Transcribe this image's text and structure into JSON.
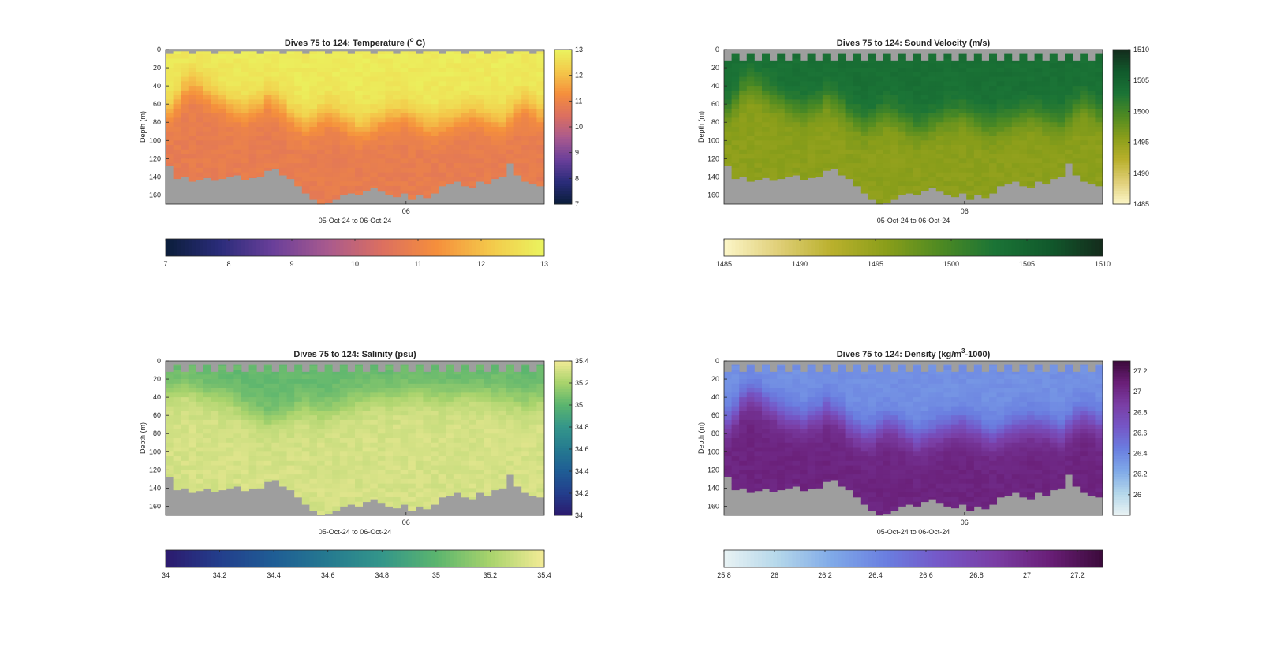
{
  "chart_data": [
    {
      "type": "heatmap",
      "title": "Dives 75 to 124: Temperature (",
      "title_sup": "o",
      "title_tail": " C)",
      "xlabel": "05-Oct-24 to 06-Oct-24",
      "ylabel": "Depth (m)",
      "x_tick_labels": [
        "06"
      ],
      "y_ticks": [
        0,
        20,
        40,
        60,
        80,
        100,
        120,
        140,
        160
      ],
      "ylim": [
        0,
        170
      ],
      "clim": [
        7,
        13
      ],
      "colorbar_ticks": [
        7,
        8,
        9,
        10,
        11,
        12,
        13
      ],
      "colorbar_ticks_h": [
        "7",
        "8",
        "9",
        "10",
        "11",
        "12",
        "13"
      ],
      "colormap": [
        "#0b1e3a",
        "#2a2c7a",
        "#6a3f9a",
        "#a95a8e",
        "#dc6f60",
        "#f58f3c",
        "#f4c84a",
        "#eaf45f"
      ],
      "nodata_color": "#9e9e9e",
      "grid": false,
      "dives": 50,
      "max_depth": [
        128,
        142,
        140,
        145,
        143,
        141,
        144,
        142,
        140,
        138,
        143,
        141,
        140,
        133,
        131,
        138,
        142,
        150,
        158,
        165,
        170,
        168,
        165,
        160,
        158,
        160,
        155,
        152,
        156,
        160,
        162,
        158,
        165,
        160,
        163,
        158,
        150,
        148,
        145,
        150,
        152,
        145,
        148,
        142,
        140,
        125,
        138,
        145,
        148,
        150
      ],
      "thermocline_depth": [
        65,
        55,
        40,
        35,
        38,
        45,
        50,
        55,
        60,
        62,
        65,
        60,
        58,
        50,
        55,
        60,
        70,
        75,
        80,
        78,
        72,
        68,
        70,
        75,
        80,
        85,
        82,
        78,
        75,
        72,
        70,
        68,
        72,
        75,
        80,
        82,
        78,
        75,
        72,
        70,
        68,
        70,
        72,
        75,
        78,
        70,
        62,
        58,
        62,
        68
      ],
      "surface_value": 12.8,
      "deep_value": 10.8
    },
    {
      "type": "heatmap",
      "title": "Dives 75 to 124: Sound Velocity (m/s)",
      "xlabel": "05-Oct-24 to 06-Oct-24",
      "ylabel": "Depth (m)",
      "x_tick_labels": [
        "06"
      ],
      "y_ticks": [
        0,
        20,
        40,
        60,
        80,
        100,
        120,
        140,
        160
      ],
      "ylim": [
        0,
        170
      ],
      "clim": [
        1485,
        1510
      ],
      "colorbar_ticks": [
        1485,
        1490,
        1495,
        1500,
        1505,
        1510
      ],
      "colorbar_ticks_h": [
        "1485",
        "1490",
        "1495",
        "1500",
        "1505",
        "1510"
      ],
      "colormap": [
        "#fcf6c8",
        "#e0cf78",
        "#b9b02c",
        "#8a9e1a",
        "#4e8a22",
        "#1b7436",
        "#115a2c",
        "#142b1c"
      ],
      "nodata_color": "#9e9e9e",
      "grid": false,
      "dives": 50,
      "max_depth": [
        128,
        142,
        140,
        145,
        143,
        141,
        144,
        142,
        140,
        138,
        143,
        141,
        140,
        133,
        131,
        138,
        142,
        150,
        158,
        165,
        170,
        168,
        165,
        160,
        158,
        160,
        155,
        152,
        156,
        160,
        162,
        158,
        165,
        160,
        163,
        158,
        150,
        148,
        145,
        150,
        152,
        145,
        148,
        142,
        140,
        125,
        138,
        145,
        148,
        150
      ],
      "thermocline_depth": [
        65,
        55,
        40,
        35,
        38,
        45,
        50,
        55,
        60,
        62,
        65,
        60,
        58,
        50,
        55,
        60,
        70,
        75,
        80,
        78,
        72,
        68,
        70,
        75,
        80,
        85,
        82,
        78,
        75,
        72,
        70,
        68,
        72,
        75,
        80,
        82,
        78,
        75,
        72,
        70,
        68,
        70,
        72,
        75,
        78,
        70,
        62,
        58,
        62,
        68
      ],
      "surface_value": 1503.5,
      "deep_value": 1495.5,
      "top_gap_depth": 12
    },
    {
      "type": "heatmap",
      "title": "Dives 75 to 124: Salinity (psu)",
      "xlabel": "05-Oct-24 to 06-Oct-24",
      "ylabel": "Depth (m)",
      "x_tick_labels": [
        "06"
      ],
      "y_ticks": [
        0,
        20,
        40,
        60,
        80,
        100,
        120,
        140,
        160
      ],
      "ylim": [
        0,
        170
      ],
      "clim": [
        34,
        35.4
      ],
      "colorbar_ticks": [
        34,
        34.2,
        34.4,
        34.6,
        34.8,
        35,
        35.2,
        35.4
      ],
      "colorbar_ticks_h": [
        "34",
        "34.2",
        "34.4",
        "34.6",
        "34.8",
        "35",
        "35.2",
        "35.4"
      ],
      "colormap": [
        "#2c1a6e",
        "#233e8c",
        "#1f5d95",
        "#257a90",
        "#34968a",
        "#5bb56e",
        "#a8d36c",
        "#f3eb97"
      ],
      "nodata_color": "#9e9e9e",
      "grid": false,
      "dives": 50,
      "max_depth": [
        128,
        142,
        140,
        145,
        143,
        141,
        144,
        142,
        140,
        138,
        143,
        141,
        140,
        133,
        131,
        138,
        142,
        150,
        158,
        165,
        170,
        168,
        165,
        160,
        158,
        160,
        155,
        152,
        156,
        160,
        162,
        158,
        165,
        160,
        163,
        158,
        150,
        148,
        145,
        150,
        152,
        145,
        148,
        142,
        140,
        125,
        138,
        145,
        148,
        150
      ],
      "thermocline_depth": [
        30,
        28,
        25,
        28,
        32,
        35,
        35,
        38,
        40,
        45,
        50,
        55,
        58,
        62,
        60,
        58,
        55,
        50,
        48,
        50,
        52,
        50,
        48,
        45,
        42,
        40,
        38,
        36,
        35,
        35,
        34,
        33,
        32,
        32,
        33,
        34,
        35,
        35,
        34,
        33,
        32,
        33,
        34,
        35,
        36,
        38,
        40,
        42,
        40,
        38
      ],
      "surface_value": 35.02,
      "deep_value": 35.32,
      "top_gap_depth": 12
    },
    {
      "type": "heatmap",
      "title": "Dives 75 to 124: Density (kg/m",
      "title_sup": "3",
      "title_tail": "-1000)",
      "xlabel": "05-Oct-24 to 06-Oct-24",
      "ylabel": "Depth (m)",
      "x_tick_labels": [
        "06"
      ],
      "y_ticks": [
        0,
        20,
        40,
        60,
        80,
        100,
        120,
        140,
        160
      ],
      "ylim": [
        0,
        170
      ],
      "clim": [
        25.8,
        27.3
      ],
      "colorbar_ticks": [
        26,
        26.2,
        26.4,
        26.6,
        26.8,
        27,
        27.2
      ],
      "colorbar_ticks_h": [
        "25.8",
        "26",
        "26.2",
        "26.4",
        "26.6",
        "26.8",
        "27",
        "27.2"
      ],
      "colorbar_ticks_h_values": [
        25.8,
        26,
        26.2,
        26.4,
        26.6,
        26.8,
        27,
        27.2
      ],
      "colormap": [
        "#e9f3f4",
        "#b4d7ea",
        "#7fa9e8",
        "#6a7ee0",
        "#7557c7",
        "#7a3ea5",
        "#6a1f78",
        "#3b0a3a"
      ],
      "nodata_color": "#9e9e9e",
      "grid": false,
      "dives": 50,
      "max_depth": [
        128,
        142,
        140,
        145,
        143,
        141,
        144,
        142,
        140,
        138,
        143,
        141,
        140,
        133,
        131,
        138,
        142,
        150,
        158,
        165,
        170,
        168,
        165,
        160,
        158,
        160,
        155,
        152,
        156,
        160,
        162,
        158,
        165,
        160,
        163,
        158,
        150,
        148,
        145,
        150,
        152,
        145,
        148,
        142,
        140,
        125,
        138,
        145,
        148,
        150
      ],
      "thermocline_depth": [
        65,
        55,
        40,
        35,
        38,
        45,
        50,
        55,
        60,
        62,
        65,
        60,
        58,
        50,
        55,
        60,
        70,
        75,
        80,
        78,
        72,
        68,
        70,
        75,
        80,
        85,
        82,
        78,
        75,
        72,
        70,
        68,
        72,
        75,
        80,
        82,
        78,
        75,
        72,
        70,
        68,
        70,
        72,
        75,
        78,
        70,
        62,
        58,
        62,
        68
      ],
      "surface_value": 26.35,
      "deep_value": 27.05,
      "top_gap_depth": 12
    }
  ]
}
